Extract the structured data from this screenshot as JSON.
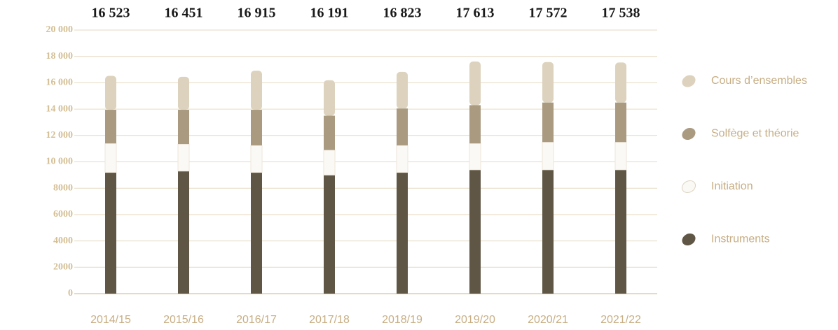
{
  "chart_data": {
    "type": "stacked-bar",
    "categories": [
      "2014/15",
      "2015/16",
      "2016/17",
      "2017/18",
      "2018/19",
      "2019/20",
      "2020/21",
      "2021/22"
    ],
    "totals": [
      16523,
      16451,
      16915,
      16191,
      16823,
      17613,
      17572,
      17538
    ],
    "total_labels": [
      "16 523",
      "16 451",
      "16 915",
      "16 191",
      "16 823",
      "17 613",
      "17 572",
      "17 538"
    ],
    "series": [
      {
        "name": "Instruments",
        "color": "#5f5646",
        "values": [
          9200,
          9300,
          9200,
          9000,
          9200,
          9400,
          9400,
          9400
        ]
      },
      {
        "name": "Initiation",
        "color": "#fbf9f5",
        "values": [
          2200,
          2050,
          2050,
          1900,
          2050,
          2000,
          2100,
          2100
        ]
      },
      {
        "name": "Solfège et théorie",
        "color": "#a99a80",
        "values": [
          2550,
          2600,
          2700,
          2600,
          2800,
          2900,
          3000,
          3000
        ]
      },
      {
        "name": "Cours d’ensembles",
        "color": "#ddd2bd",
        "values": [
          2573,
          2501,
          2965,
          2691,
          2773,
          3313,
          3072,
          3038
        ]
      }
    ],
    "ylim": [
      0,
      20000
    ],
    "yticks": [
      0,
      2000,
      4000,
      6000,
      8000,
      {
        "value": 10000,
        "label": "10 000"
      },
      {
        "value": 12000,
        "label": "12 000"
      },
      {
        "value": 14000,
        "label": "14 000"
      },
      {
        "value": 16000,
        "label": "16 000"
      },
      {
        "value": 18000,
        "label": "18 000"
      },
      {
        "value": 20000,
        "label": "20 000"
      }
    ],
    "grid": true
  }
}
